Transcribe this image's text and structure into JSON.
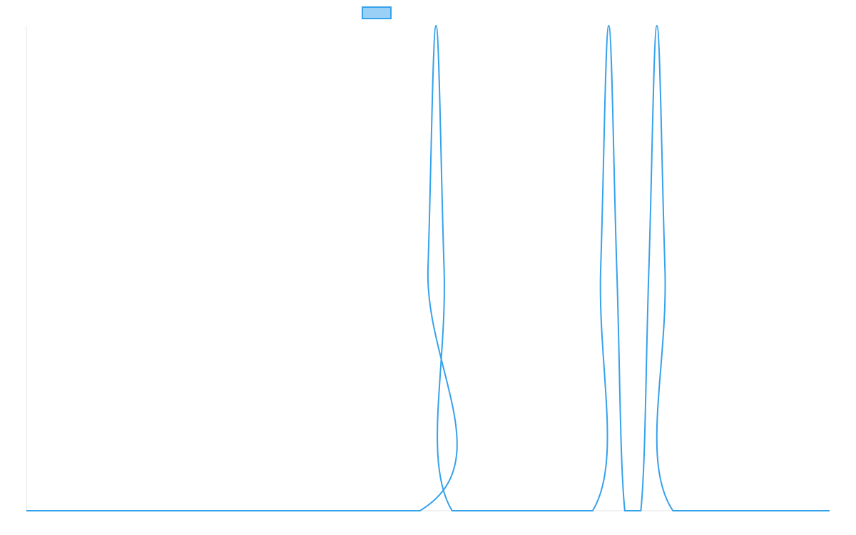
{
  "chart_data": {
    "type": "line",
    "title": "",
    "xlabel": "",
    "ylabel": "",
    "legend": {
      "placement": "top-center",
      "entries": [
        {
          "label": "",
          "swatch_fill": "#9ad0f5",
          "swatch_stroke": "#36a2eb"
        }
      ]
    },
    "grid": false,
    "xlim": [
      0,
      100
    ],
    "ylim": [
      0,
      1
    ],
    "series": [
      {
        "color": "#36a2eb",
        "x": [
          0,
          49,
          50,
          51,
          52,
          53,
          70.5,
          71.5,
          72.5,
          73.5,
          74.5,
          76.5,
          77.5,
          78.5,
          79.5,
          80.5,
          100
        ],
        "values": [
          0,
          0,
          0.5,
          1,
          0.5,
          0,
          0,
          0.5,
          1,
          0.5,
          0,
          0,
          0.5,
          1,
          0.5,
          0,
          0
        ]
      }
    ]
  }
}
